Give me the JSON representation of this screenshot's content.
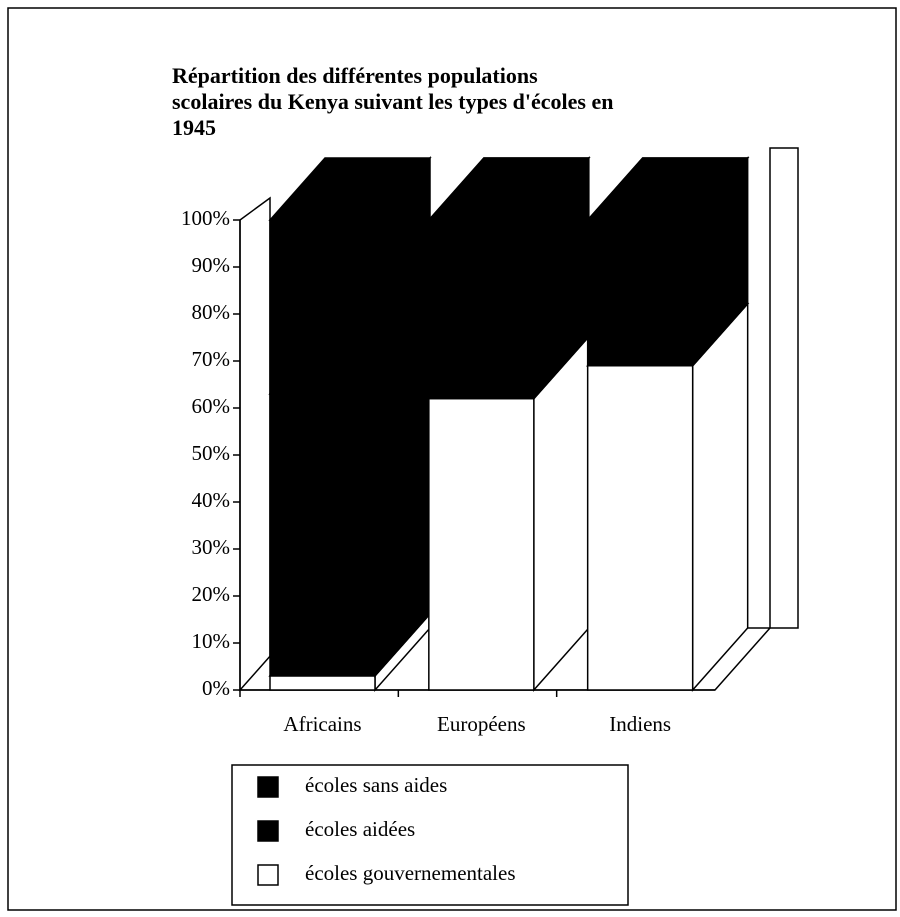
{
  "chart_data": {
    "type": "bar3d_stacked",
    "title": [
      "Répartition des différentes populations",
      "scolaires du Kenya suivant les types d'écoles en",
      "1945"
    ],
    "categories": [
      "Africains",
      "Européens",
      "Indiens"
    ],
    "series": [
      {
        "name": "écoles sans aides",
        "color": "#000000",
        "values": [
          37,
          0,
          0
        ]
      },
      {
        "name": "écoles aidées",
        "color": "#000000",
        "values": [
          60,
          38,
          31
        ]
      },
      {
        "name": "écoles gouvernementales",
        "color": "#ffffff",
        "values": [
          3,
          62,
          69
        ]
      }
    ],
    "ylim": [
      0,
      100
    ],
    "yticks": [
      {
        "value": 0,
        "label": "0%"
      },
      {
        "value": 10,
        "label": "10%"
      },
      {
        "value": 20,
        "label": "20%"
      },
      {
        "value": 30,
        "label": "30%"
      },
      {
        "value": 40,
        "label": "40%"
      },
      {
        "value": 50,
        "label": "50%"
      },
      {
        "value": 60,
        "label": "60%"
      },
      {
        "value": 70,
        "label": "70%"
      },
      {
        "value": 80,
        "label": "80%"
      },
      {
        "value": 90,
        "label": "90%"
      },
      {
        "value": 100,
        "label": "100%"
      }
    ]
  }
}
